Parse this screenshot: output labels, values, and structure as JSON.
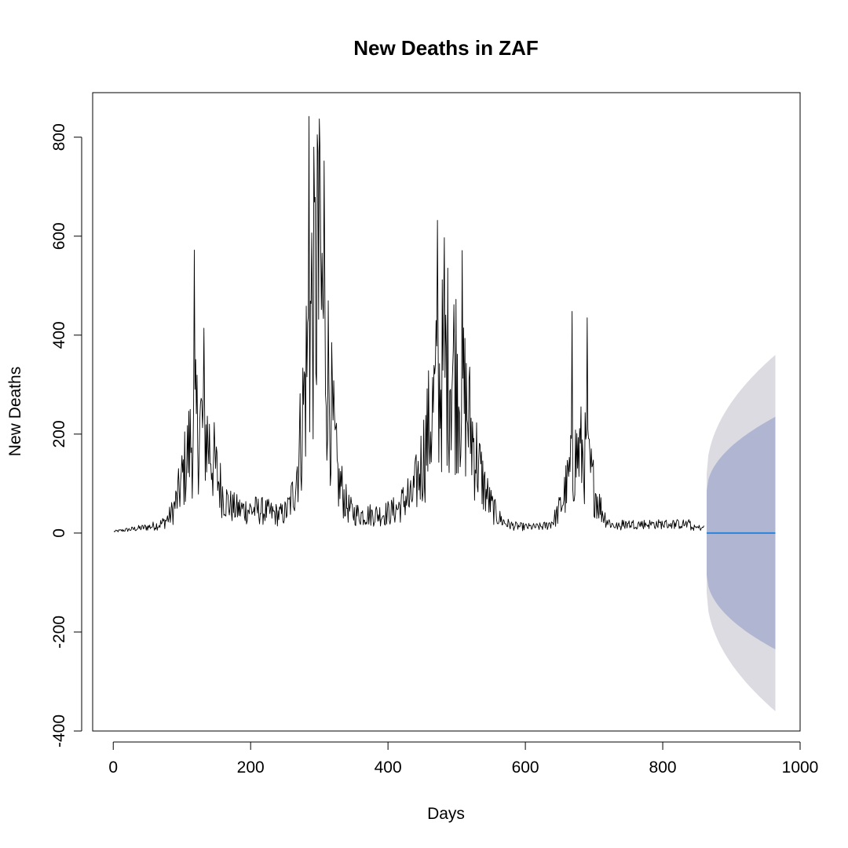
{
  "chart_data": {
    "type": "line",
    "title": "New Deaths in ZAF",
    "xlabel": "Days",
    "ylabel": "New Deaths",
    "xlim": [
      -30,
      1000
    ],
    "ylim": [
      -400,
      890
    ],
    "x_ticks": [
      0,
      200,
      400,
      600,
      800,
      1000
    ],
    "y_ticks": [
      -400,
      -200,
      0,
      200,
      400,
      600,
      800
    ],
    "grid": false,
    "series": [
      {
        "role": "observed",
        "color": "#000000",
        "start_day": 1,
        "end_day": 860,
        "waves": [
          {
            "center": 125,
            "width": 20,
            "peak": 200
          },
          {
            "center": 297,
            "width": 17,
            "peak": 480
          },
          {
            "center": 490,
            "width": 30,
            "peak": 330
          },
          {
            "center": 680,
            "width": 18,
            "peak": 150
          }
        ],
        "anchor_points": [
          {
            "x": 118,
            "y": 572
          },
          {
            "x": 132,
            "y": 414
          },
          {
            "x": 285,
            "y": 842
          },
          {
            "x": 297,
            "y": 805
          },
          {
            "x": 300,
            "y": 837
          },
          {
            "x": 307,
            "y": 752
          },
          {
            "x": 472,
            "y": 632
          },
          {
            "x": 482,
            "y": 597
          },
          {
            "x": 508,
            "y": 571
          },
          {
            "x": 668,
            "y": 448
          },
          {
            "x": 690,
            "y": 435
          }
        ]
      },
      {
        "role": "forecast-mean",
        "color": "#2b83d8",
        "x": [
          864,
          964
        ],
        "y": [
          0,
          0
        ]
      }
    ],
    "intervals": [
      {
        "level": "95%",
        "color": "#dbdbe1",
        "x_start": 864,
        "x_end": 964,
        "half_width_start": 120,
        "half_width_end": 360
      },
      {
        "level": "80%",
        "color": "#b0b6d1",
        "x_start": 864,
        "x_end": 964,
        "half_width_start": 85,
        "half_width_end": 235
      }
    ]
  }
}
